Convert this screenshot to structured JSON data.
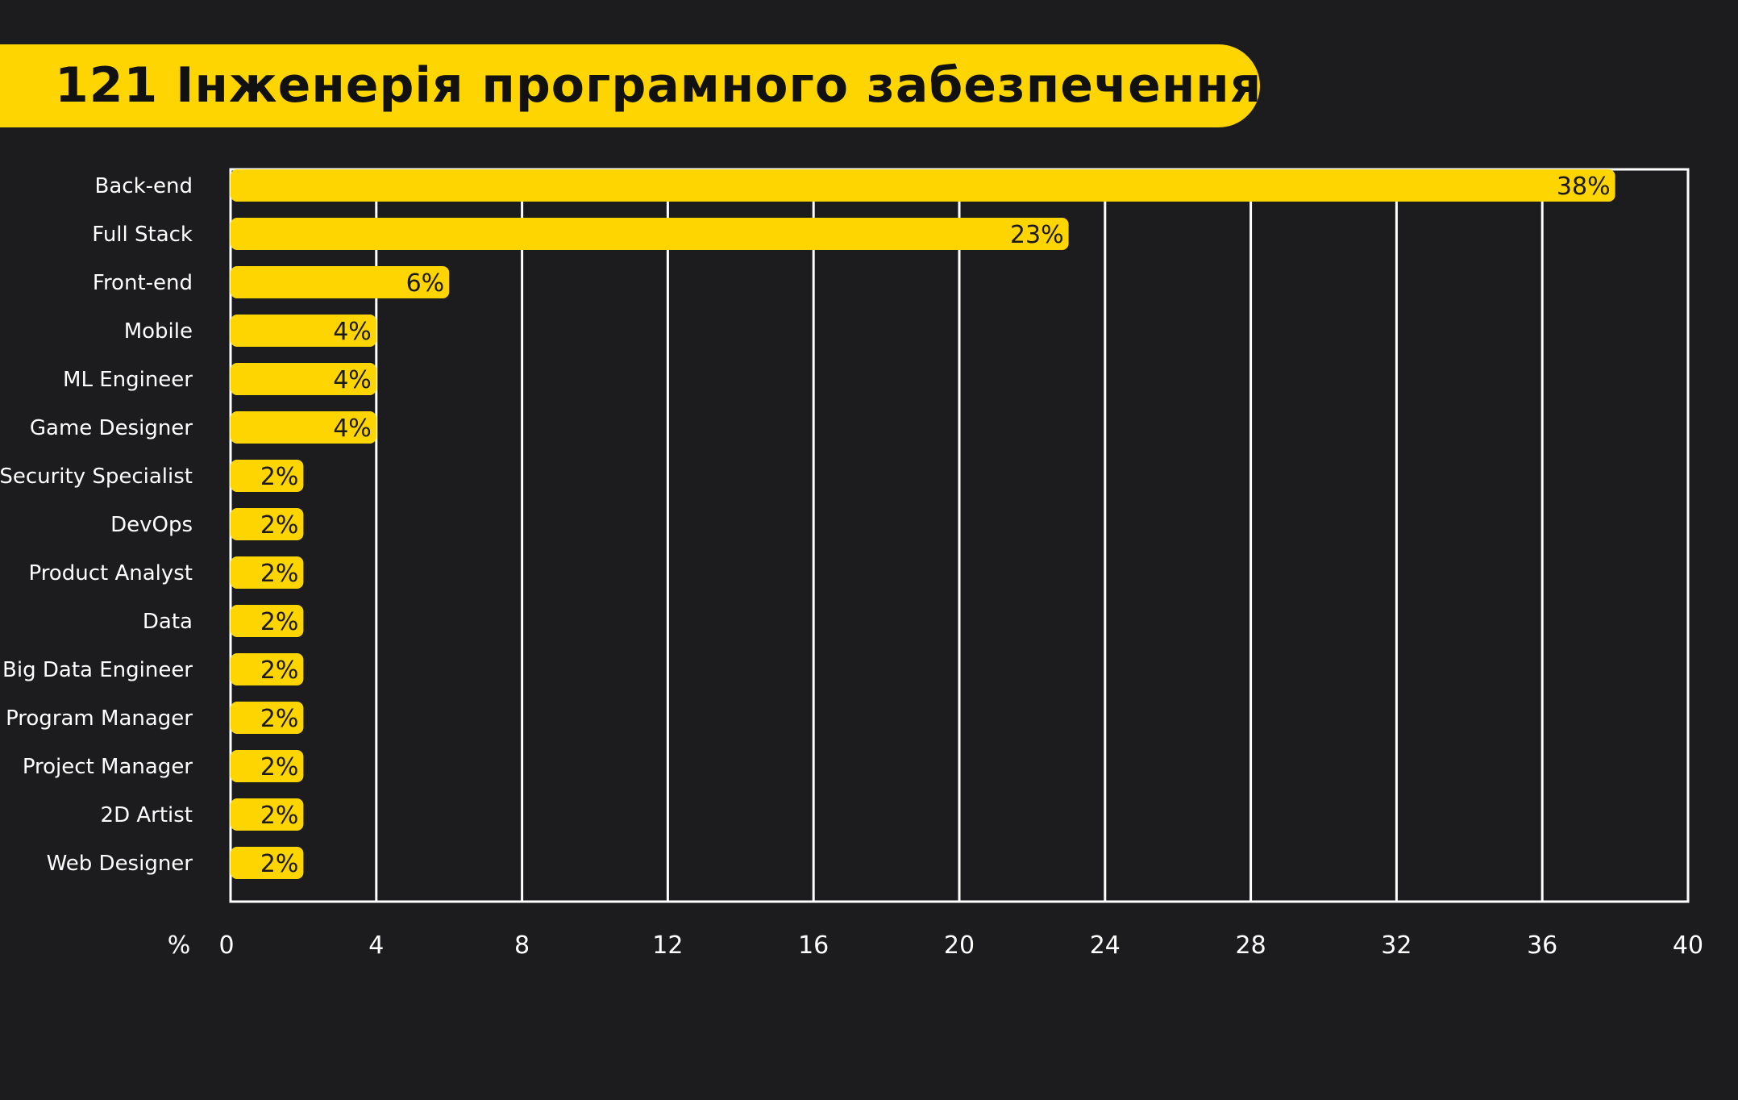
{
  "header": {
    "title": "121 Інженерія програмного забезпечення"
  },
  "colors": {
    "background": "#1c1c1e",
    "accent": "#ffd500",
    "grid": "#ffffff",
    "text": "#ffffff",
    "label_text": "#1a1a1a"
  },
  "chart_data": {
    "type": "bar",
    "orientation": "horizontal",
    "title": "121 Інженерія програмного забезпечення",
    "xlabel": "%",
    "ylabel": "",
    "xlim": [
      0,
      40
    ],
    "xticks": [
      0,
      4,
      8,
      12,
      16,
      20,
      24,
      28,
      32,
      36,
      40
    ],
    "grid": true,
    "categories": [
      "Back-end",
      "Full Stack",
      "Front-end",
      "Mobile",
      "ML Engineer",
      "Game Designer",
      "Security Specialist",
      "DevOps",
      "Product Analyst",
      "Data",
      "Big Data Engineer",
      "Program Manager",
      "Project Manager",
      "2D Artist",
      "Web Designer"
    ],
    "values": [
      38,
      23,
      6,
      4,
      4,
      4,
      2,
      2,
      2,
      2,
      2,
      2,
      2,
      2,
      2
    ],
    "data_labels": [
      "38%",
      "23%",
      "6%",
      "4%",
      "4%",
      "4%",
      "2%",
      "2%",
      "2%",
      "2%",
      "2%",
      "2%",
      "2%",
      "2%",
      "2%"
    ]
  }
}
